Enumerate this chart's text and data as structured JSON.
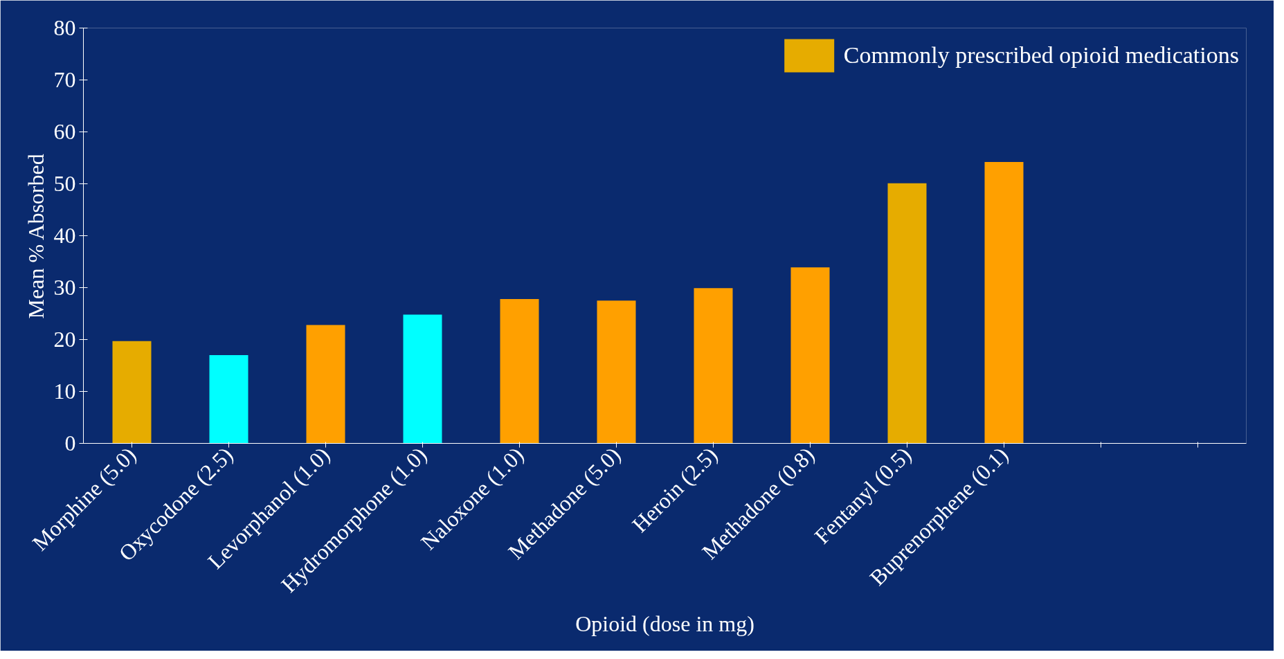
{
  "chart_data": {
    "type": "bar",
    "xlabel": "Opioid (dose in mg)",
    "ylabel": "Mean % Absorbed",
    "categories": [
      "Morphine (5.0)",
      "Oxycodone (2.5)",
      "Levorphanol (1.0)",
      "Hydromorphone (1.0)",
      "Naloxone (1.0)",
      "Methadone (5.0)",
      "Heroin (2.5)",
      "Methadone (0.8)",
      "Fentanyl (0.5)",
      "Buprenorphene (0.1)",
      null,
      null
    ],
    "series": [
      {
        "name": "Commonly prescribed opioid medications",
        "color": "#e6ac00",
        "values": [
          19.7,
          null,
          null,
          null,
          null,
          null,
          null,
          null,
          50.1,
          null,
          null,
          null
        ]
      },
      {
        "color": "#00ffff",
        "values": [
          null,
          17.0,
          null,
          24.8,
          null,
          null,
          null,
          null,
          null,
          null,
          null,
          null
        ]
      },
      {
        "color": "#ffa000",
        "values": [
          null,
          null,
          22.8,
          null,
          27.8,
          27.5,
          29.9,
          33.9,
          null,
          54.2,
          null,
          null
        ]
      }
    ],
    "ylim": [
      0,
      80
    ],
    "yticks": [
      0,
      10,
      20,
      30,
      40,
      50,
      60,
      70,
      80
    ],
    "grid": false,
    "legend": "top right"
  }
}
